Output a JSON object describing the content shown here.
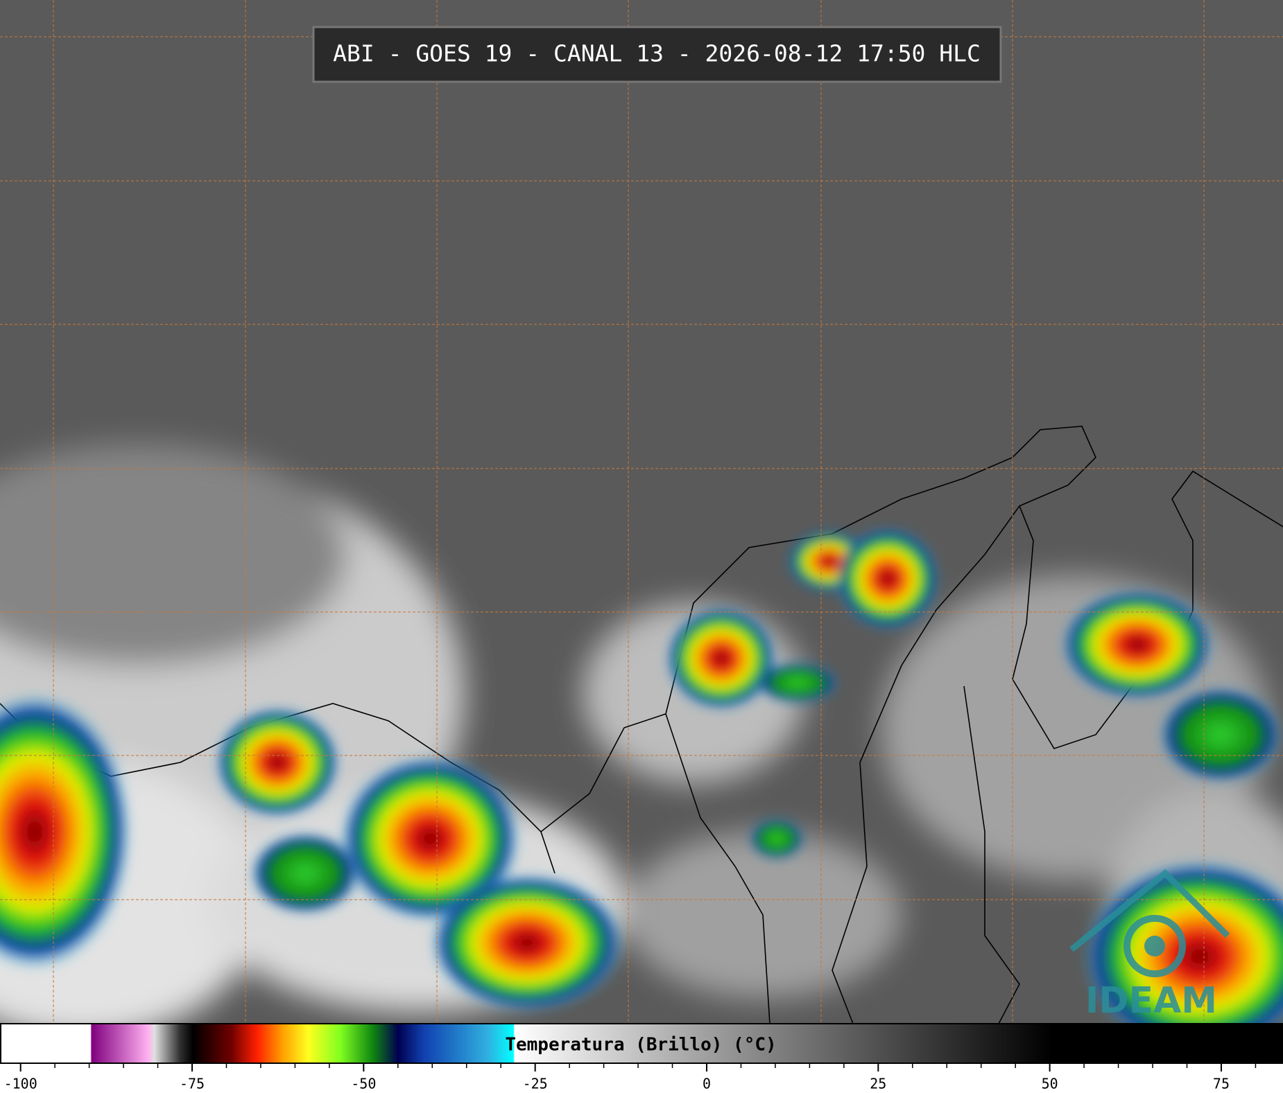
{
  "header": {
    "title": "ABI - GOES 19 - CANAL 13 - 2026-08-12 17:50 HLC"
  },
  "colorbar": {
    "label": "Temperatura (Brillo) (°C)",
    "lim": [
      -103,
      84
    ],
    "ticks": [
      -100,
      -75,
      -50,
      -25,
      0,
      25,
      50,
      75
    ],
    "minor_ticks": [
      -95,
      -90,
      -85,
      -80,
      -70,
      -65,
      -60,
      -55,
      -45,
      -40,
      -35,
      -30,
      -20,
      -15,
      -10,
      -5,
      5,
      10,
      15,
      20,
      30,
      35,
      40,
      45,
      55,
      60,
      65,
      70,
      80
    ]
  },
  "logo": {
    "text": "IDEAM"
  }
}
